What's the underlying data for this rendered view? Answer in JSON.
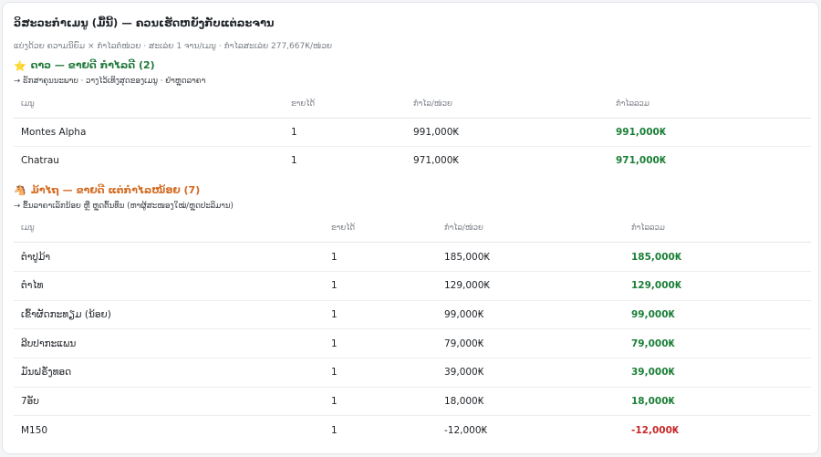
{
  "page": {
    "title": "ວິສະວະກຳເມນູ (ມື້ນີ້) — ຄວນເຮັດຫຍັງກັບແຕ່ລະຈານ",
    "subtitle": "ແບ່ງດ້ວຍ ຄວາມນິຍົມ × ກຳໄລຕໍ່ໜ່ວຍ · ສະເລ່ຍ 1 ຈານ/ເມນູ · ກຳໄລສະເລ່ຍ 277,667₭/ໜ່ວຍ"
  },
  "sections": [
    {
      "icon": "star-icon",
      "glyph": "⭐",
      "title": "ດາວ — ຂາຍດີ ກຳໄລດີ (2)",
      "note": "→ ຮັກສາຄຸນນະພາບ · ວາງໄວ້ເທິງສຸດຂອງເມນູ · ຢ່າຫຼຸດລາຄາ",
      "columns": [
        "ເມນູ",
        "ຂາຍໄດ້",
        "ກຳໄລ/ໜ່ວຍ",
        "ກຳໄລລວມ"
      ],
      "rows": [
        {
          "name": "Montes Alpha",
          "sold": "1",
          "unit_profit": "991,000₭",
          "total": "991,000₭"
        },
        {
          "name": "Chatrau",
          "sold": "1",
          "unit_profit": "971,000₭",
          "total": "971,000₭"
        }
      ]
    },
    {
      "icon": "horse-icon",
      "glyph": "🐴",
      "title": "ມ້າໄຖ — ຂາຍດີ ແຕ່ກຳໄລໜ້ອຍ (7)",
      "note": "→ ຂຶ້ນລາຄາເລັກນ້ອຍ ຫຼື ຫຼຸດຕົ້ນທຶນ (ຫາຜູ້ສະໜອງໃໝ່/ຫຼຸດປະລິມານ)",
      "columns": [
        "ເມນູ",
        "ຂາຍໄດ້",
        "ກຳໄລ/ໜ່ວຍ",
        "ກຳໄລລວມ"
      ],
      "rows": [
        {
          "name": "ຕຳປູມ້າ",
          "sold": "1",
          "unit_profit": "185,000₭",
          "total": "185,000₭"
        },
        {
          "name": "ຕຳໄທ",
          "sold": "1",
          "unit_profit": "129,000₭",
          "total": "129,000₭"
        },
        {
          "name": "ເຂົ້າຜັດກະທຽມ (ນ້ອຍ)",
          "sold": "1",
          "unit_profit": "99,000₭",
          "total": "99,000₭"
        },
        {
          "name": "ລີບປາກະແພນ",
          "sold": "1",
          "unit_profit": "79,000₭",
          "total": "79,000₭"
        },
        {
          "name": "ມັນຝຣັ່ງທອດ",
          "sold": "1",
          "unit_profit": "39,000₭",
          "total": "39,000₭"
        },
        {
          "name": "7ອັບ",
          "sold": "1",
          "unit_profit": "18,000₭",
          "total": "18,000₭"
        },
        {
          "name": "M150",
          "sold": "1",
          "unit_profit": "-12,000₭",
          "total": "-12,000₭"
        }
      ]
    }
  ],
  "colors": {
    "stars_heading": "#1f7a3a",
    "plowhorse_heading": "#d2691e",
    "positive_total": "#1a7f37",
    "negative_total": "#c62828"
  }
}
